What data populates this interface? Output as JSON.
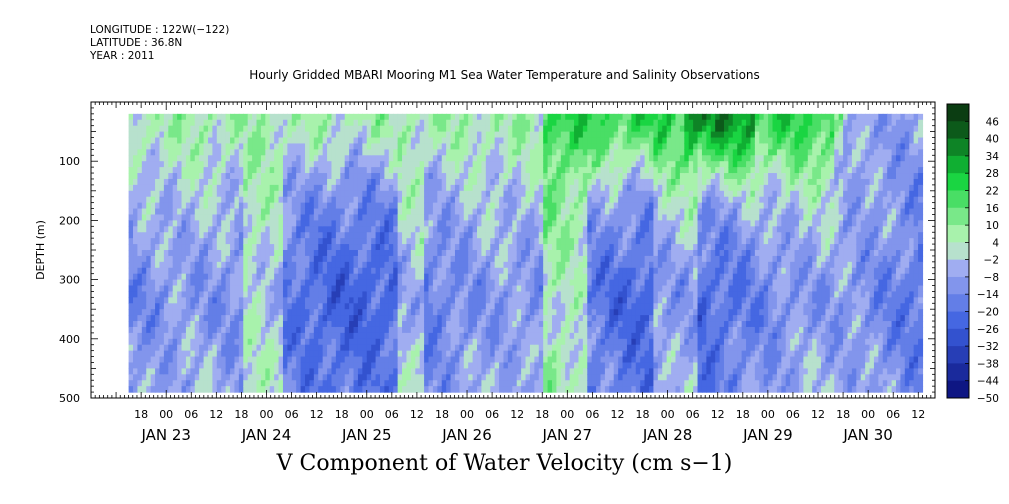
{
  "header": {
    "longitude": "LONGITUDE : 122W(−122)",
    "latitude": "LATITUDE : 36.8N",
    "year": "YEAR : 2011"
  },
  "chart_data": {
    "type": "heatmap",
    "title": "Hourly Gridded MBARI Mooring M1 Sea Water Temperature and Salinity Observations",
    "variable_title": "V Component of Water Velocity (cm s−1)",
    "ylabel": "DEPTH (m)",
    "ylim": [
      500,
      0
    ],
    "y_reversed": true,
    "y_ticks": [
      100,
      200,
      300,
      400,
      500
    ],
    "data_depth_range": [
      20,
      490
    ],
    "x_axis": {
      "start": "2011-01-22T06:00",
      "end": "2011-01-30T16:00",
      "data_start": "2011-01-22T15:00",
      "data_end": "2011-01-30T13:00",
      "hour_labels": [
        "18",
        "00",
        "06",
        "12",
        "18",
        "00",
        "06",
        "12",
        "18",
        "00",
        "06",
        "12",
        "18",
        "00",
        "06",
        "12",
        "18",
        "00",
        "06",
        "12",
        "18",
        "00",
        "06",
        "12",
        "18",
        "00",
        "06",
        "12",
        "18",
        "00",
        "06",
        "12"
      ],
      "first_hour_label_time": "2011-01-22T18:00",
      "day_labels": [
        "JAN 23",
        "JAN 24",
        "JAN 25",
        "JAN 26",
        "JAN 27",
        "JAN 28",
        "JAN 29",
        "JAN 30"
      ]
    },
    "colorbar": {
      "labels": [
        "46",
        "40",
        "34",
        "28",
        "22",
        "16",
        "10",
        "4",
        "−2",
        "−8",
        "−14",
        "−20",
        "−26",
        "−32",
        "−38",
        "−44",
        "−50"
      ],
      "min": -50,
      "max": 52,
      "step": 6,
      "colors": {
        "neg_darkest": "#0a0f7a",
        "neg_mid": "#3b5fe0",
        "neg_light": "#b4bcf4",
        "pos_light": "#b8f5b8",
        "pos_mid": "#12d33c",
        "pos_darkest": "#0b3d12"
      }
    },
    "patterns": {
      "surface_layer": "positive (green) in upper ~150 m, strongest Jan 27–28 near surface",
      "deep_layer": "mostly negative (blue) below ~200 m with alternating green vertical bands",
      "late_period": "Jan 29–30 negative (blue) nearly throughout the column"
    }
  }
}
